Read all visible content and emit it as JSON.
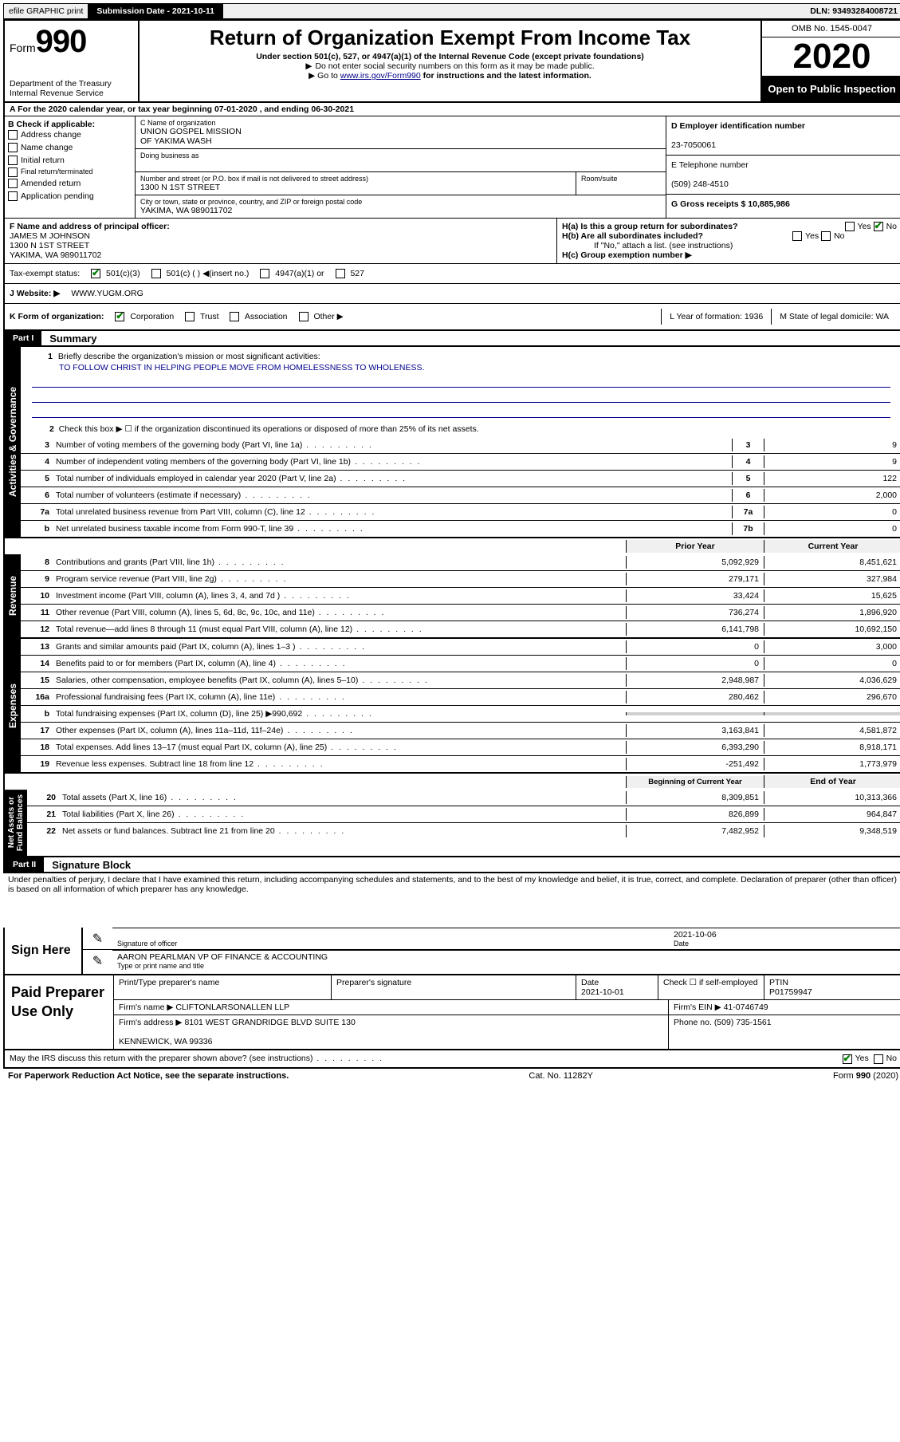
{
  "topbar": {
    "efile": "efile GRAPHIC print",
    "submission_label": "Submission Date - 2021-10-11",
    "dln": "DLN: 93493284008721"
  },
  "header": {
    "form_prefix": "Form",
    "form_number": "990",
    "dept": "Department of the Treasury\nInternal Revenue Service",
    "title": "Return of Organization Exempt From Income Tax",
    "subtitle": "Under section 501(c), 527, or 4947(a)(1) of the Internal Revenue Code (except private foundations)",
    "note1": "Do not enter social security numbers on this form as it may be made public.",
    "note2_pre": "Go to ",
    "note2_link": "www.irs.gov/Form990",
    "note2_post": " for instructions and the latest information.",
    "omb": "OMB No. 1545-0047",
    "year": "2020",
    "open": "Open to Public Inspection"
  },
  "row_a": "For the 2020 calendar year, or tax year beginning 07-01-2020   , and ending 06-30-2021",
  "checkb": {
    "label": "B Check if applicable:",
    "opts": [
      "Address change",
      "Name change",
      "Initial return",
      "Final return/terminated",
      "Amended return",
      "Application pending"
    ]
  },
  "org": {
    "c_label": "C Name of organization",
    "name": "UNION GOSPEL MISSION\nOF YAKIMA WASH",
    "dba_label": "Doing business as",
    "street_label": "Number and street (or P.O. box if mail is not delivered to street address)",
    "street": "1300 N 1ST STREET",
    "room_label": "Room/suite",
    "city_label": "City or town, state or province, country, and ZIP or foreign postal code",
    "city": "YAKIMA, WA  989011702",
    "d_label": "D Employer identification number",
    "ein": "23-7050061",
    "e_label": "E Telephone number",
    "phone": "(509) 248-4510",
    "g_label": "G Gross receipts $ 10,885,986"
  },
  "f_block": {
    "f_label": "F Name and address of principal officer:",
    "officer": "JAMES M JOHNSON\n1300 N 1ST STREET\nYAKIMA, WA  989011702",
    "ha": "H(a)  Is this a group return for subordinates?",
    "hb": "H(b)  Are all subordinates included?",
    "hb_note": "If \"No,\" attach a list. (see instructions)",
    "hc": "H(c)  Group exemption number ▶"
  },
  "status": {
    "label": "Tax-exempt status:",
    "o1": "501(c)(3)",
    "o2": "501(c) (  ) ◀(insert no.)",
    "o3": "4947(a)(1) or",
    "o4": "527"
  },
  "website": {
    "label": "J   Website: ▶",
    "url": "WWW.YUGM.ORG"
  },
  "korg": {
    "label": "K Form of organization:",
    "o1": "Corporation",
    "o2": "Trust",
    "o3": "Association",
    "o4": "Other ▶",
    "l": "L Year of formation: 1936",
    "m": "M State of legal domicile: WA"
  },
  "part1": {
    "hdr": "Part I",
    "title": "Summary",
    "l1": "Briefly describe the organization's mission or most significant activities:",
    "mission": "TO FOLLOW CHRIST IN HELPING PEOPLE MOVE FROM HOMELESSNESS TO WHOLENESS.",
    "l2": "Check this box ▶ ☐  if the organization discontinued its operations or disposed of more than 25% of its net assets.",
    "gov": [
      {
        "n": "3",
        "t": "Number of voting members of the governing body (Part VI, line 1a)",
        "b": "3",
        "v": "9"
      },
      {
        "n": "4",
        "t": "Number of independent voting members of the governing body (Part VI, line 1b)",
        "b": "4",
        "v": "9"
      },
      {
        "n": "5",
        "t": "Total number of individuals employed in calendar year 2020 (Part V, line 2a)",
        "b": "5",
        "v": "122"
      },
      {
        "n": "6",
        "t": "Total number of volunteers (estimate if necessary)",
        "b": "6",
        "v": "2,000"
      },
      {
        "n": "7a",
        "t": "Total unrelated business revenue from Part VIII, column (C), line 12",
        "b": "7a",
        "v": "0"
      },
      {
        "n": "b",
        "t": "Net unrelated business taxable income from Form 990-T, line 39",
        "b": "7b",
        "v": "0"
      }
    ],
    "col_prior": "Prior Year",
    "col_current": "Current Year",
    "rev": [
      {
        "n": "8",
        "t": "Contributions and grants (Part VIII, line 1h)",
        "p": "5,092,929",
        "c": "8,451,621"
      },
      {
        "n": "9",
        "t": "Program service revenue (Part VIII, line 2g)",
        "p": "279,171",
        "c": "327,984"
      },
      {
        "n": "10",
        "t": "Investment income (Part VIII, column (A), lines 3, 4, and 7d )",
        "p": "33,424",
        "c": "15,625"
      },
      {
        "n": "11",
        "t": "Other revenue (Part VIII, column (A), lines 5, 6d, 8c, 9c, 10c, and 11e)",
        "p": "736,274",
        "c": "1,896,920"
      },
      {
        "n": "12",
        "t": "Total revenue—add lines 8 through 11 (must equal Part VIII, column (A), line 12)",
        "p": "6,141,798",
        "c": "10,692,150"
      }
    ],
    "exp": [
      {
        "n": "13",
        "t": "Grants and similar amounts paid (Part IX, column (A), lines 1–3 )",
        "p": "0",
        "c": "3,000"
      },
      {
        "n": "14",
        "t": "Benefits paid to or for members (Part IX, column (A), line 4)",
        "p": "0",
        "c": "0"
      },
      {
        "n": "15",
        "t": "Salaries, other compensation, employee benefits (Part IX, column (A), lines 5–10)",
        "p": "2,948,987",
        "c": "4,036,629"
      },
      {
        "n": "16a",
        "t": "Professional fundraising fees (Part IX, column (A), line 11e)",
        "p": "280,462",
        "c": "296,670"
      },
      {
        "n": "b",
        "t": "Total fundraising expenses (Part IX, column (D), line 25) ▶990,692",
        "p": "",
        "c": ""
      },
      {
        "n": "17",
        "t": "Other expenses (Part IX, column (A), lines 11a–11d, 11f–24e)",
        "p": "3,163,841",
        "c": "4,581,872"
      },
      {
        "n": "18",
        "t": "Total expenses. Add lines 13–17 (must equal Part IX, column (A), line 25)",
        "p": "6,393,290",
        "c": "8,918,171"
      },
      {
        "n": "19",
        "t": "Revenue less expenses. Subtract line 18 from line 12",
        "p": "-251,492",
        "c": "1,773,979"
      }
    ],
    "col_beg": "Beginning of Current Year",
    "col_end": "End of Year",
    "net": [
      {
        "n": "20",
        "t": "Total assets (Part X, line 16)",
        "p": "8,309,851",
        "c": "10,313,366"
      },
      {
        "n": "21",
        "t": "Total liabilities (Part X, line 26)",
        "p": "826,899",
        "c": "964,847"
      },
      {
        "n": "22",
        "t": "Net assets or fund balances. Subtract line 21 from line 20",
        "p": "7,482,952",
        "c": "9,348,519"
      }
    ]
  },
  "part2": {
    "hdr": "Part II",
    "title": "Signature Block",
    "decl": "Under penalties of perjury, I declare that I have examined this return, including accompanying schedules and statements, and to the best of my knowledge and belief, it is true, correct, and complete. Declaration of preparer (other than officer) is based on all information of which preparer has any knowledge."
  },
  "sign": {
    "label": "Sign Here",
    "sig_label": "Signature of officer",
    "date": "2021-10-06",
    "date_label": "Date",
    "name": "AARON PEARLMAN VP OF FINANCE & ACCOUNTING",
    "name_label": "Type or print name and title"
  },
  "prep": {
    "label": "Paid Preparer Use Only",
    "pt_name_label": "Print/Type preparer's name",
    "sig_label": "Preparer's signature",
    "date_label": "Date",
    "date": "2021-10-01",
    "self_label": "Check ☐ if self-employed",
    "ptin_label": "PTIN",
    "ptin": "P01759947",
    "firm_label": "Firm's name   ▶",
    "firm": "CLIFTONLARSONALLEN LLP",
    "ein_label": "Firm's EIN ▶",
    "ein": "41-0746749",
    "addr_label": "Firm's address ▶",
    "addr": "8101 WEST GRANDRIDGE BLVD SUITE 130\n\nKENNEWICK, WA  99336",
    "phone_label": "Phone no.",
    "phone": "(509) 735-1561"
  },
  "discuss": "May the IRS discuss this return with the preparer shown above? (see instructions)",
  "bottom": {
    "pra": "For Paperwork Reduction Act Notice, see the separate instructions.",
    "cat": "Cat. No. 11282Y",
    "form": "Form 990 (2020)"
  }
}
